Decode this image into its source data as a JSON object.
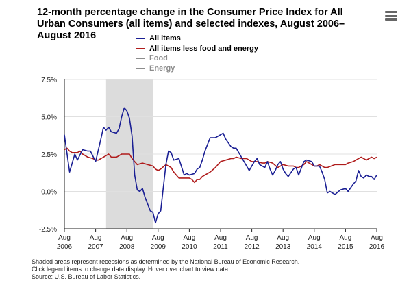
{
  "title": "12-month percentage change in the Consumer Price Index for All Urban Consumers (all items) and selected indexes, August 2006–August 2016",
  "menu_icon": "hamburger-menu-icon",
  "legend": [
    {
      "label": "All items",
      "color": "#1a1f94",
      "visible": true
    },
    {
      "label": "All items less food and energy",
      "color": "#b01c1c",
      "visible": true
    },
    {
      "label": "Food",
      "color": "#8c8c8c",
      "visible": false
    },
    {
      "label": "Energy",
      "color": "#8c8c8c",
      "visible": false
    }
  ],
  "footnotes": {
    "line1": "Shaded areas represent recessions as determined by the National Bureau of Economic Research.",
    "line2": "Click legend items to change data display. Hover over chart to view data.",
    "line3": "Source: U.S. Bureau of Labor Statistics."
  },
  "chart_data": {
    "type": "line",
    "title": "12-month percentage change in the Consumer Price Index for All Urban Consumers (all items) and selected indexes, August 2006–August 2016",
    "xlabel": "",
    "ylabel": "",
    "x_range": [
      2006.583,
      2016.583
    ],
    "ylim": [
      -2.5,
      7.5
    ],
    "y_ticks": [
      -2.5,
      0,
      2.5,
      5,
      7.5
    ],
    "y_tick_labels": [
      "-2.5%",
      "0.0%",
      "2.5%",
      "5.0%",
      "7.5%"
    ],
    "x_ticks": [
      {
        "x": 2006.583,
        "top": "Aug",
        "bottom": "2006"
      },
      {
        "x": 2007.583,
        "top": "Aug",
        "bottom": "2007"
      },
      {
        "x": 2008.583,
        "top": "Aug",
        "bottom": "2008"
      },
      {
        "x": 2009.583,
        "top": "Aug",
        "bottom": "2009"
      },
      {
        "x": 2010.583,
        "top": "Aug",
        "bottom": "2010"
      },
      {
        "x": 2011.583,
        "top": "Aug",
        "bottom": "2011"
      },
      {
        "x": 2012.583,
        "top": "Aug",
        "bottom": "2012"
      },
      {
        "x": 2013.583,
        "top": "Aug",
        "bottom": "2013"
      },
      {
        "x": 2014.583,
        "top": "Aug",
        "bottom": "2014"
      },
      {
        "x": 2015.583,
        "top": "Aug",
        "bottom": "2015"
      },
      {
        "x": 2016.583,
        "top": "Aug",
        "bottom": "2016"
      }
    ],
    "recession": {
      "start": 2007.917,
      "end": 2009.417
    },
    "series": [
      {
        "name": "All items",
        "color": "#1a1f94",
        "values": [
          [
            2006.583,
            3.8
          ],
          [
            2006.75,
            1.3
          ],
          [
            2006.917,
            2.5
          ],
          [
            2007.0,
            2.1
          ],
          [
            2007.167,
            2.8
          ],
          [
            2007.333,
            2.7
          ],
          [
            2007.417,
            2.7
          ],
          [
            2007.583,
            2.0
          ],
          [
            2007.75,
            3.5
          ],
          [
            2007.833,
            4.3
          ],
          [
            2007.917,
            4.1
          ],
          [
            2008.0,
            4.3
          ],
          [
            2008.083,
            4.0
          ],
          [
            2008.25,
            3.9
          ],
          [
            2008.333,
            4.2
          ],
          [
            2008.417,
            5.0
          ],
          [
            2008.5,
            5.6
          ],
          [
            2008.583,
            5.4
          ],
          [
            2008.667,
            4.9
          ],
          [
            2008.75,
            3.7
          ],
          [
            2008.833,
            1.1
          ],
          [
            2008.917,
            0.1
          ],
          [
            2009.0,
            0.0
          ],
          [
            2009.083,
            0.2
          ],
          [
            2009.167,
            -0.4
          ],
          [
            2009.333,
            -1.3
          ],
          [
            2009.417,
            -1.4
          ],
          [
            2009.5,
            -2.1
          ],
          [
            2009.583,
            -1.5
          ],
          [
            2009.667,
            -1.3
          ],
          [
            2009.833,
            1.8
          ],
          [
            2009.917,
            2.7
          ],
          [
            2010.0,
            2.6
          ],
          [
            2010.083,
            2.1
          ],
          [
            2010.25,
            2.2
          ],
          [
            2010.417,
            1.1
          ],
          [
            2010.5,
            1.2
          ],
          [
            2010.583,
            1.1
          ],
          [
            2010.75,
            1.2
          ],
          [
            2010.833,
            1.5
          ],
          [
            2010.917,
            1.6
          ],
          [
            2011.0,
            2.1
          ],
          [
            2011.083,
            2.7
          ],
          [
            2011.25,
            3.6
          ],
          [
            2011.417,
            3.6
          ],
          [
            2011.583,
            3.8
          ],
          [
            2011.667,
            3.9
          ],
          [
            2011.75,
            3.5
          ],
          [
            2011.917,
            3.0
          ],
          [
            2012.0,
            2.9
          ],
          [
            2012.083,
            2.9
          ],
          [
            2012.25,
            2.3
          ],
          [
            2012.417,
            1.7
          ],
          [
            2012.5,
            1.4
          ],
          [
            2012.583,
            1.7
          ],
          [
            2012.667,
            2.0
          ],
          [
            2012.75,
            2.2
          ],
          [
            2012.833,
            1.8
          ],
          [
            2012.917,
            1.7
          ],
          [
            2013.0,
            1.6
          ],
          [
            2013.083,
            2.0
          ],
          [
            2013.167,
            1.5
          ],
          [
            2013.25,
            1.1
          ],
          [
            2013.333,
            1.4
          ],
          [
            2013.417,
            1.8
          ],
          [
            2013.5,
            2.0
          ],
          [
            2013.583,
            1.5
          ],
          [
            2013.667,
            1.2
          ],
          [
            2013.75,
            1.0
          ],
          [
            2013.917,
            1.5
          ],
          [
            2014.0,
            1.6
          ],
          [
            2014.083,
            1.1
          ],
          [
            2014.25,
            2.0
          ],
          [
            2014.333,
            2.1
          ],
          [
            2014.5,
            2.0
          ],
          [
            2014.583,
            1.7
          ],
          [
            2014.667,
            1.7
          ],
          [
            2014.75,
            1.7
          ],
          [
            2014.833,
            1.3
          ],
          [
            2014.917,
            0.8
          ],
          [
            2015.0,
            -0.1
          ],
          [
            2015.083,
            0.0
          ],
          [
            2015.25,
            -0.2
          ],
          [
            2015.417,
            0.1
          ],
          [
            2015.583,
            0.2
          ],
          [
            2015.667,
            0.0
          ],
          [
            2015.833,
            0.5
          ],
          [
            2015.917,
            0.7
          ],
          [
            2016.0,
            1.4
          ],
          [
            2016.083,
            1.0
          ],
          [
            2016.167,
            0.9
          ],
          [
            2016.25,
            1.1
          ],
          [
            2016.333,
            1.0
          ],
          [
            2016.417,
            1.0
          ],
          [
            2016.5,
            0.8
          ],
          [
            2016.583,
            1.1
          ]
        ]
      },
      {
        "name": "All items less food and energy",
        "color": "#b01c1c",
        "values": [
          [
            2006.583,
            2.8
          ],
          [
            2006.667,
            2.9
          ],
          [
            2006.75,
            2.7
          ],
          [
            2006.833,
            2.6
          ],
          [
            2007.0,
            2.6
          ],
          [
            2007.083,
            2.7
          ],
          [
            2007.167,
            2.5
          ],
          [
            2007.333,
            2.3
          ],
          [
            2007.5,
            2.2
          ],
          [
            2007.583,
            2.1
          ],
          [
            2007.667,
            2.1
          ],
          [
            2007.833,
            2.3
          ],
          [
            2008.0,
            2.5
          ],
          [
            2008.083,
            2.3
          ],
          [
            2008.25,
            2.3
          ],
          [
            2008.417,
            2.5
          ],
          [
            2008.583,
            2.5
          ],
          [
            2008.667,
            2.5
          ],
          [
            2008.75,
            2.2
          ],
          [
            2008.917,
            1.8
          ],
          [
            2009.083,
            1.9
          ],
          [
            2009.25,
            1.8
          ],
          [
            2009.417,
            1.7
          ],
          [
            2009.5,
            1.5
          ],
          [
            2009.583,
            1.4
          ],
          [
            2009.667,
            1.5
          ],
          [
            2009.833,
            1.8
          ],
          [
            2010.0,
            1.6
          ],
          [
            2010.083,
            1.3
          ],
          [
            2010.25,
            0.9
          ],
          [
            2010.583,
            0.9
          ],
          [
            2010.667,
            0.8
          ],
          [
            2010.75,
            0.6
          ],
          [
            2010.833,
            0.8
          ],
          [
            2010.917,
            0.8
          ],
          [
            2011.0,
            1.0
          ],
          [
            2011.083,
            1.1
          ],
          [
            2011.25,
            1.3
          ],
          [
            2011.417,
            1.6
          ],
          [
            2011.583,
            2.0
          ],
          [
            2011.75,
            2.1
          ],
          [
            2011.917,
            2.2
          ],
          [
            2012.0,
            2.2
          ],
          [
            2012.083,
            2.3
          ],
          [
            2012.25,
            2.2
          ],
          [
            2012.417,
            2.2
          ],
          [
            2012.583,
            2.0
          ],
          [
            2012.75,
            2.0
          ],
          [
            2012.917,
            1.9
          ],
          [
            2013.0,
            1.9
          ],
          [
            2013.083,
            2.0
          ],
          [
            2013.25,
            1.9
          ],
          [
            2013.417,
            1.6
          ],
          [
            2013.583,
            1.8
          ],
          [
            2013.75,
            1.7
          ],
          [
            2013.917,
            1.7
          ],
          [
            2014.0,
            1.6
          ],
          [
            2014.083,
            1.6
          ],
          [
            2014.25,
            1.8
          ],
          [
            2014.333,
            2.0
          ],
          [
            2014.417,
            1.9
          ],
          [
            2014.583,
            1.7
          ],
          [
            2014.667,
            1.7
          ],
          [
            2014.75,
            1.8
          ],
          [
            2014.917,
            1.6
          ],
          [
            2015.0,
            1.6
          ],
          [
            2015.25,
            1.8
          ],
          [
            2015.417,
            1.8
          ],
          [
            2015.583,
            1.8
          ],
          [
            2015.667,
            1.9
          ],
          [
            2015.833,
            2.0
          ],
          [
            2015.917,
            2.1
          ],
          [
            2016.0,
            2.2
          ],
          [
            2016.083,
            2.3
          ],
          [
            2016.167,
            2.2
          ],
          [
            2016.25,
            2.1
          ],
          [
            2016.333,
            2.2
          ],
          [
            2016.417,
            2.3
          ],
          [
            2016.5,
            2.2
          ],
          [
            2016.583,
            2.3
          ]
        ]
      }
    ]
  }
}
